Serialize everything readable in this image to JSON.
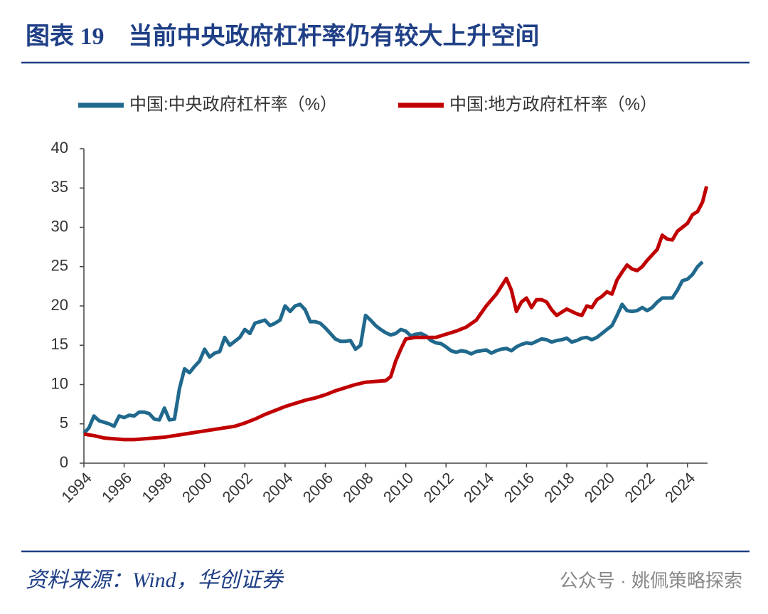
{
  "chart_data": {
    "type": "line",
    "title": "图表 19　当前中央政府杠杆率仍有较大上升空间",
    "source": "资料来源：Wind，华创证券",
    "watermark": "公众号 · 姚佩策略探索",
    "xlim": [
      1994,
      2025
    ],
    "xticks": [
      1994,
      1996,
      1998,
      2000,
      2002,
      2004,
      2006,
      2008,
      2010,
      2012,
      2014,
      2016,
      2018,
      2020,
      2022,
      2024
    ],
    "ylim": [
      0,
      40
    ],
    "yticks": [
      0,
      5,
      10,
      15,
      20,
      25,
      30,
      35,
      40
    ],
    "grid": false,
    "legend": "top",
    "series": [
      {
        "name": "中国:中央政府杠杆率（%）",
        "color": "#20698d",
        "x": [
          1994,
          1994.25,
          1994.5,
          1994.75,
          1995,
          1995.25,
          1995.5,
          1995.75,
          1996,
          1996.25,
          1996.5,
          1996.75,
          1997,
          1997.25,
          1997.5,
          1997.75,
          1998,
          1998.25,
          1998.5,
          1998.75,
          1999,
          1999.25,
          1999.5,
          1999.75,
          2000,
          2000.25,
          2000.5,
          2000.75,
          2001,
          2001.25,
          2001.5,
          2001.75,
          2002,
          2002.25,
          2002.5,
          2002.75,
          2003,
          2003.25,
          2003.5,
          2003.75,
          2004,
          2004.25,
          2004.5,
          2004.75,
          2005,
          2005.25,
          2005.5,
          2005.75,
          2006,
          2006.25,
          2006.5,
          2006.75,
          2007,
          2007.25,
          2007.5,
          2007.75,
          2008,
          2008.25,
          2008.5,
          2008.75,
          2009,
          2009.25,
          2009.5,
          2009.75,
          2010,
          2010.25,
          2010.5,
          2010.75,
          2011,
          2011.25,
          2011.5,
          2011.75,
          2012,
          2012.25,
          2012.5,
          2012.75,
          2013,
          2013.25,
          2013.5,
          2013.75,
          2014,
          2014.25,
          2014.5,
          2014.75,
          2015,
          2015.25,
          2015.5,
          2015.75,
          2016,
          2016.25,
          2016.5,
          2016.75,
          2017,
          2017.25,
          2017.5,
          2017.75,
          2018,
          2018.25,
          2018.5,
          2018.75,
          2019,
          2019.25,
          2019.5,
          2019.75,
          2020,
          2020.25,
          2020.5,
          2020.75,
          2021,
          2021.25,
          2021.5,
          2021.75,
          2022,
          2022.25,
          2022.5,
          2022.75,
          2023,
          2023.25,
          2023.5,
          2023.75,
          2024,
          2024.25,
          2024.5,
          2024.75
        ],
        "values": [
          3.8,
          4.5,
          6.0,
          5.4,
          5.2,
          5.0,
          4.7,
          6.0,
          5.8,
          6.1,
          6.0,
          6.5,
          6.5,
          6.3,
          5.6,
          5.5,
          7.0,
          5.5,
          5.6,
          9.5,
          12.0,
          11.5,
          12.3,
          13.0,
          14.5,
          13.5,
          14.0,
          14.2,
          16.0,
          15.0,
          15.5,
          16.0,
          17.0,
          16.5,
          17.8,
          18.0,
          18.2,
          17.5,
          17.8,
          18.2,
          20.0,
          19.3,
          20.0,
          20.2,
          19.5,
          18.0,
          18.0,
          17.8,
          17.2,
          16.5,
          15.8,
          15.5,
          15.5,
          15.6,
          14.5,
          15.0,
          18.8,
          18.2,
          17.5,
          17.0,
          16.6,
          16.3,
          16.5,
          17.0,
          16.8,
          16.2,
          16.4,
          16.5,
          16.2,
          15.6,
          15.3,
          15.2,
          14.8,
          14.3,
          14.1,
          14.3,
          14.2,
          13.9,
          14.2,
          14.3,
          14.4,
          14.0,
          14.3,
          14.5,
          14.6,
          14.3,
          14.8,
          15.1,
          15.3,
          15.2,
          15.5,
          15.8,
          15.7,
          15.4,
          15.6,
          15.7,
          15.9,
          15.4,
          15.6,
          15.9,
          16.0,
          15.7,
          16.0,
          16.5,
          17.0,
          17.5,
          18.8,
          20.2,
          19.4,
          19.3,
          19.4,
          19.8,
          19.4,
          19.8,
          20.5,
          21.0,
          21.0,
          21.0,
          22.0,
          23.2,
          23.4,
          24.0,
          25.0,
          25.6
        ]
      },
      {
        "name": "中国:地方政府杠杆率（%）",
        "color": "#c00000",
        "x": [
          1994,
          1994.5,
          1995,
          1995.5,
          1996,
          1996.5,
          1997,
          1997.5,
          1998,
          1998.5,
          1999,
          1999.5,
          2000,
          2000.5,
          2001,
          2001.5,
          2002,
          2002.5,
          2003,
          2003.5,
          2004,
          2004.5,
          2005,
          2005.5,
          2006,
          2006.5,
          2007,
          2007.5,
          2008,
          2008.5,
          2009,
          2009.25,
          2009.5,
          2009.75,
          2010,
          2010.5,
          2011,
          2011.5,
          2012,
          2012.5,
          2013,
          2013.5,
          2014,
          2014.5,
          2014.75,
          2015,
          2015.25,
          2015.5,
          2015.75,
          2016,
          2016.25,
          2016.5,
          2016.75,
          2017,
          2017.25,
          2017.5,
          2017.75,
          2018,
          2018.25,
          2018.5,
          2018.75,
          2019,
          2019.25,
          2019.5,
          2019.75,
          2020,
          2020.25,
          2020.5,
          2020.75,
          2021,
          2021.25,
          2021.5,
          2021.75,
          2022,
          2022.25,
          2022.5,
          2022.75,
          2023,
          2023.25,
          2023.5,
          2023.75,
          2024,
          2024.25,
          2024.5,
          2024.75,
          2024.95
        ],
        "values": [
          3.7,
          3.5,
          3.2,
          3.1,
          3.0,
          3.0,
          3.1,
          3.2,
          3.3,
          3.5,
          3.7,
          3.9,
          4.1,
          4.3,
          4.5,
          4.7,
          5.1,
          5.6,
          6.2,
          6.7,
          7.2,
          7.6,
          8.0,
          8.3,
          8.7,
          9.2,
          9.6,
          10.0,
          10.3,
          10.4,
          10.5,
          11.0,
          13.0,
          14.5,
          15.8,
          16.0,
          16.0,
          16.0,
          16.4,
          16.8,
          17.3,
          18.2,
          20.0,
          21.5,
          22.5,
          23.5,
          22.0,
          19.3,
          20.5,
          21.0,
          19.8,
          20.8,
          20.8,
          20.5,
          19.5,
          18.8,
          19.2,
          19.6,
          19.3,
          19.0,
          18.8,
          20.0,
          19.8,
          20.8,
          21.2,
          21.8,
          21.5,
          23.3,
          24.3,
          25.2,
          24.7,
          24.5,
          25.0,
          25.8,
          26.5,
          27.2,
          29.0,
          28.5,
          28.4,
          29.5,
          30.0,
          30.5,
          31.6,
          32.0,
          33.2,
          35.2
        ]
      }
    ]
  }
}
